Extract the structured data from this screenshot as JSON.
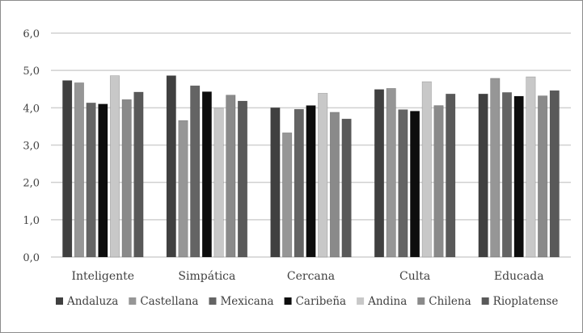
{
  "chart_data": {
    "type": "bar",
    "title": "",
    "xlabel": "",
    "ylabel": "",
    "ylim": [
      0,
      6
    ],
    "yticks": [
      "0,0",
      "1,0",
      "2,0",
      "3,0",
      "4,0",
      "5,0",
      "6,0"
    ],
    "grid": true,
    "legend_position": "bottom",
    "categories": [
      "Inteligente",
      "Simpática",
      "Cercana",
      "Culta",
      "Educada"
    ],
    "series": [
      {
        "name": "Andaluza",
        "color": "#404040",
        "values": [
          4.73,
          4.86,
          4.0,
          4.49,
          4.37
        ]
      },
      {
        "name": "Castellana",
        "color": "#969696",
        "values": [
          4.67,
          3.66,
          3.33,
          4.52,
          4.79
        ]
      },
      {
        "name": "Mexicana",
        "color": "#646464",
        "values": [
          4.13,
          4.59,
          3.96,
          3.95,
          4.41
        ]
      },
      {
        "name": "Caribeña",
        "color": "#0d0d0d",
        "values": [
          4.1,
          4.43,
          4.06,
          3.91,
          4.31
        ]
      },
      {
        "name": "Andina",
        "color": "#c8c8c8",
        "values": [
          4.86,
          3.99,
          4.39,
          4.7,
          4.83
        ]
      },
      {
        "name": "Chilena",
        "color": "#8a8a8a",
        "values": [
          4.22,
          4.34,
          3.88,
          4.06,
          4.32
        ]
      },
      {
        "name": "Rioplatense",
        "color": "#595959",
        "values": [
          4.42,
          4.18,
          3.7,
          4.37,
          4.46
        ]
      }
    ]
  }
}
